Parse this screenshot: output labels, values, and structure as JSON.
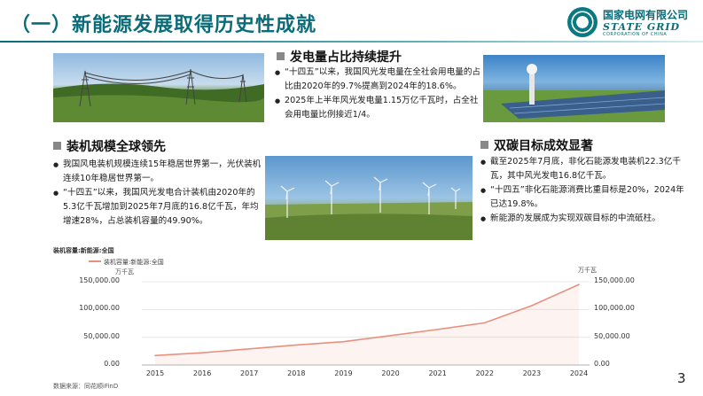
{
  "header": {
    "title": "（一）新能源发展取得历史性成就",
    "logo_cn": "国家电网有限公司",
    "logo_en": "STATE GRID",
    "logo_en_sub": "CORPORATION OF CHINA"
  },
  "sections": {
    "share": {
      "heading": "发电量占比持续提升",
      "bullets": [
        "“十四五”以来，我国风光发电量在全社会用电量的占比由2020年的9.7%提高到2024年的18.6%。",
        "2025年上半年风光发电量1.15万亿千瓦时，占全社会用电量比例接近1/4。"
      ]
    },
    "scale": {
      "heading": "装机规模全球领先",
      "bullets": [
        "我国风电装机规模连续15年稳居世界第一，光伏装机连续10年稳居世界第一。",
        "“十四五”以来，我国风光发电合计装机由2020年的5.3亿千瓦增加到2025年7月底的16.8亿千瓦，年均增速28%，占总装机容量的49.90%。"
      ]
    },
    "carbon": {
      "heading": "双碳目标成效显著",
      "bullets": [
        "截至2025年7月底，非化石能源发电装机22.3亿千瓦，其中风光发电16.8亿千瓦。",
        "“十四五”非化石能源消费比重目标是20%，2024年已达19.8%。",
        "新能源的发展成为实现双碳目标的中流砥柱。"
      ]
    }
  },
  "chart_data": {
    "type": "line",
    "title": "装机容量:新能源:全国",
    "x": [
      "2015",
      "2016",
      "2017",
      "2018",
      "2019",
      "2020",
      "2021",
      "2022",
      "2023",
      "2024"
    ],
    "series": [
      {
        "name": "装机容量:新能源:全国",
        "values": [
          17000,
          22000,
          29000,
          36000,
          42000,
          53000,
          64000,
          76000,
          107000,
          145000
        ]
      }
    ],
    "ylabel_left": "万千瓦",
    "ylabel_right": "万千瓦",
    "yticks": [
      "0.00",
      "50,000.00",
      "100,000.00",
      "150,000.00"
    ],
    "ylim": [
      0,
      150000
    ],
    "grid": true,
    "legend": "top-left",
    "line_color": "#e8907e",
    "source": "数据来源：同花顺iFinD"
  },
  "page_number": "3"
}
